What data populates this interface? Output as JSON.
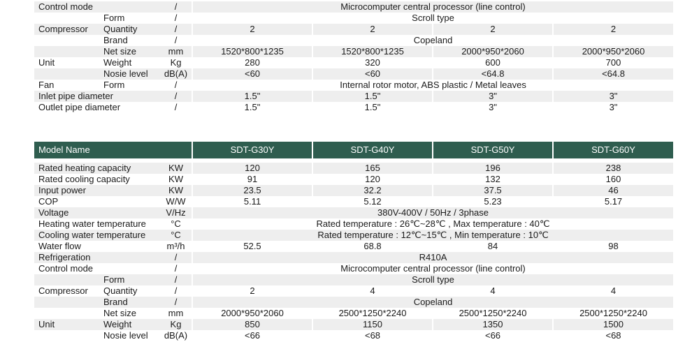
{
  "top_section": {
    "rows": [
      {
        "label": "Control mode",
        "sub": "",
        "unit": "/",
        "span": "Microcomputer central processor (line control)",
        "shade": true
      },
      {
        "label": "",
        "sub": "Form",
        "unit": "/",
        "span": "Scroll type",
        "shade": false
      },
      {
        "label": "Compressor",
        "sub": "Quantity",
        "unit": "/",
        "values": [
          "2",
          "2",
          "2",
          "2"
        ],
        "shade": true
      },
      {
        "label": "",
        "sub": "Brand",
        "unit": "/",
        "span": "Copeland",
        "shade": false
      },
      {
        "label": "",
        "sub": "Net size",
        "unit": "mm",
        "values": [
          "1520*800*1235",
          "1520*800*1235",
          "2000*950*2060",
          "2000*950*2060"
        ],
        "shade": true
      },
      {
        "label": "Unit",
        "sub": "Weight",
        "unit": "Kg",
        "values": [
          "280",
          "320",
          "600",
          "700"
        ],
        "shade": false
      },
      {
        "label": "",
        "sub": "Nosie level",
        "unit": "dB(A)",
        "values": [
          "<60",
          "<60",
          "<64.8",
          "<64.8"
        ],
        "shade": true
      },
      {
        "label": "Fan",
        "sub": "Form",
        "unit": "/",
        "span": "Internal rotor motor, ABS plastic / Metal leaves",
        "shade": false
      },
      {
        "label": "Inlet pipe diameter",
        "sub": "",
        "unit": "/",
        "values": [
          "1.5\"",
          "1.5\"",
          "3\"",
          "3\""
        ],
        "shade": true
      },
      {
        "label": "Outlet pipe diameter",
        "sub": "",
        "unit": "/",
        "values": [
          "1.5\"",
          "1.5\"",
          "3\"",
          "3\""
        ],
        "shade": false
      }
    ]
  },
  "bottom_section": {
    "header": {
      "label": "Model Name",
      "models": [
        "SDT-G30Y",
        "SDT-G40Y",
        "SDT-G50Y",
        "SDT-G60Y"
      ]
    },
    "rows": [
      {
        "label": "Rated heating capacity",
        "sub": "",
        "unit": "KW",
        "values": [
          "120",
          "165",
          "196",
          "238"
        ],
        "shade": true
      },
      {
        "label": "Rated cooling capacity",
        "sub": "",
        "unit": "KW",
        "values": [
          "91",
          "120",
          "132",
          "160"
        ],
        "shade": false
      },
      {
        "label": "Input power",
        "sub": "",
        "unit": "KW",
        "values": [
          "23.5",
          "32.2",
          "37.5",
          "46"
        ],
        "shade": true
      },
      {
        "label": "COP",
        "sub": "",
        "unit": "W/W",
        "values": [
          "5.11",
          "5.12",
          "5.23",
          "5.17"
        ],
        "shade": false
      },
      {
        "label": "Voltage",
        "sub": "",
        "unit": "V/Hz",
        "span": "380V-400V / 50Hz / 3phase",
        "shade": true
      },
      {
        "label": "Heating water temperature",
        "sub": "",
        "unit": "°C",
        "span": "Rated temperature : 26℃~28℃ , Max temperature : 40℃",
        "shade": false
      },
      {
        "label": "Cooling water temperature",
        "sub": "",
        "unit": "°C",
        "span": "Rated temperature : 12℃~15℃ , Min temperature : 10℃",
        "shade": true
      },
      {
        "label": "Water flow",
        "sub": "",
        "unit": "m³/h",
        "values": [
          "52.5",
          "68.8",
          "84",
          "98"
        ],
        "shade": false
      },
      {
        "label": "Refrigeration",
        "sub": "",
        "unit": "/",
        "span": "R410A",
        "shade": true
      },
      {
        "label": "Control mode",
        "sub": "",
        "unit": "/",
        "span": "Microcomputer central processor (line control)",
        "shade": false
      },
      {
        "label": "",
        "sub": "Form",
        "unit": "/",
        "span": "Scroll type",
        "shade": true
      },
      {
        "label": "Compressor",
        "sub": "Quantity",
        "unit": "/",
        "values": [
          "2",
          "4",
          "4",
          "4"
        ],
        "shade": false
      },
      {
        "label": "",
        "sub": "Brand",
        "unit": "/",
        "span": "Copeland",
        "shade": true
      },
      {
        "label": "",
        "sub": "Net size",
        "unit": "mm",
        "values": [
          "2000*950*2060",
          "2500*1250*2240",
          "2500*1250*2240",
          "2500*1250*2240"
        ],
        "shade": false
      },
      {
        "label": "Unit",
        "sub": "Weight",
        "unit": "Kg",
        "values": [
          "850",
          "1150",
          "1350",
          "1500"
        ],
        "shade": true
      },
      {
        "label": "",
        "sub": "Nosie level",
        "unit": "dB(A)",
        "values": [
          "<66",
          "<68",
          "<66",
          "<68"
        ],
        "shade": false
      }
    ]
  }
}
